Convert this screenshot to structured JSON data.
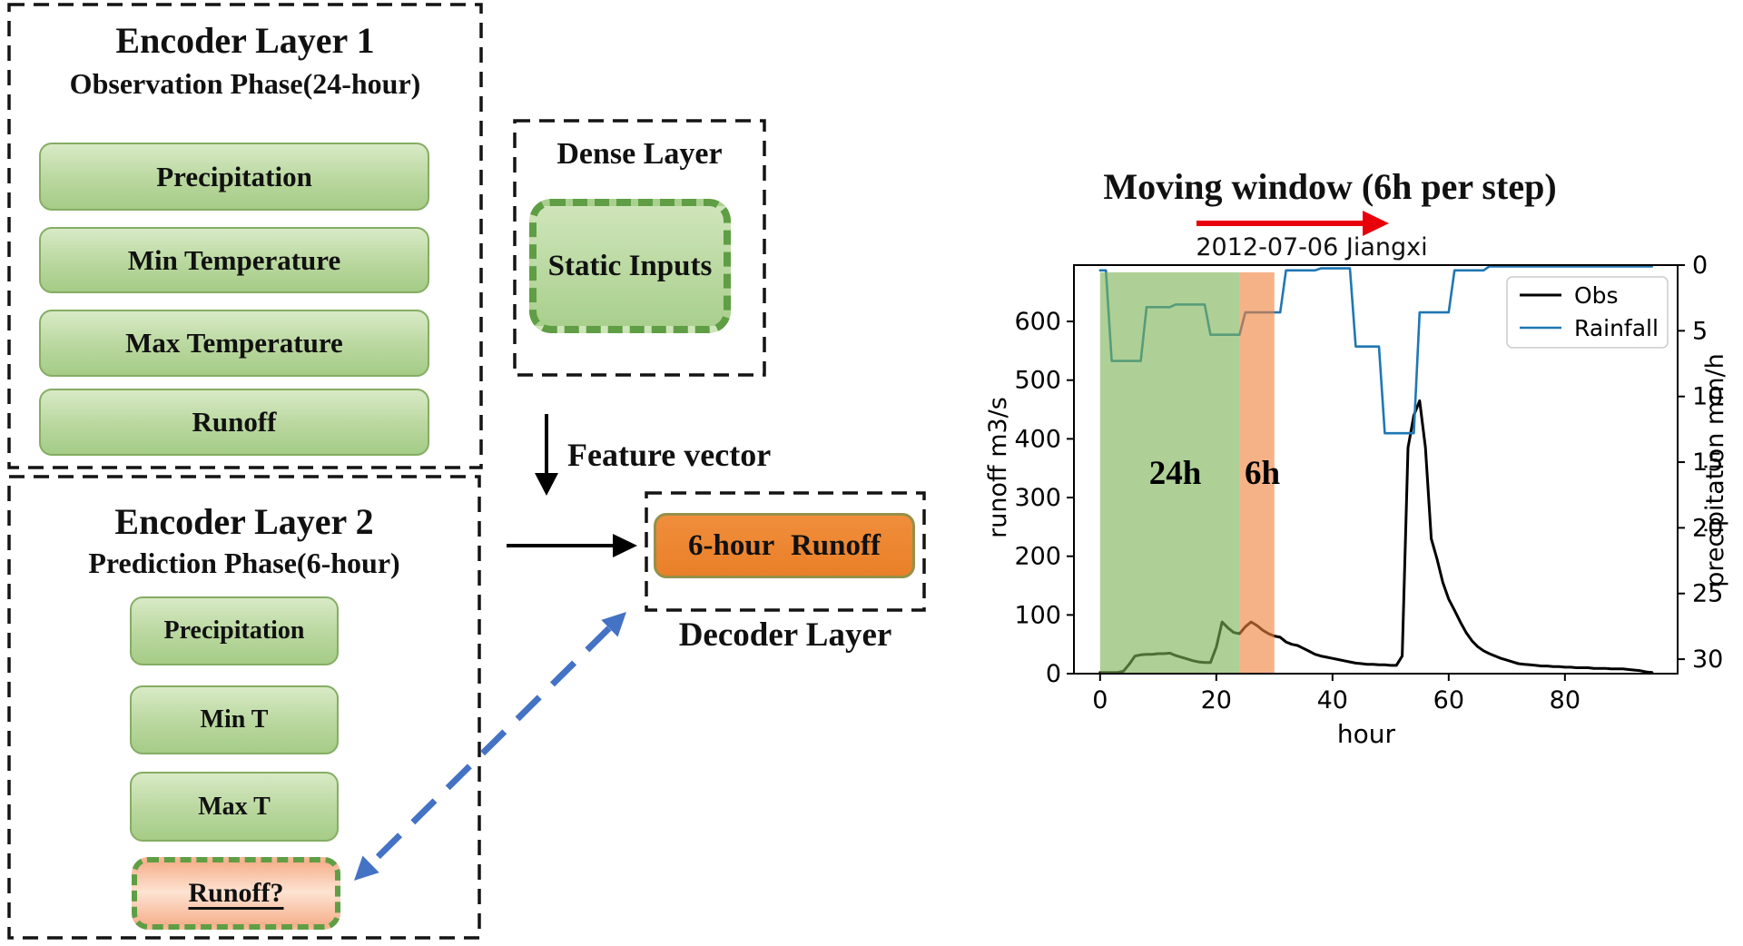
{
  "diagram": {
    "encoder1": {
      "title": "Encoder Layer 1",
      "subtitle": "Observation Phase(24-hour)",
      "inputs": [
        "Precipitation",
        "Min Temperature",
        "Max Temperature",
        "Runoff"
      ]
    },
    "encoder2": {
      "title": "Encoder Layer 2",
      "subtitle": "Prediction Phase(6-hour)",
      "inputs": [
        "Precipitation",
        "Min T",
        "Max T"
      ],
      "feedback_input": "Runoff?"
    },
    "dense": {
      "title": "Dense Layer",
      "box_label": "Static Inputs"
    },
    "feature_vector_label": "Feature vector",
    "decoder": {
      "title": "Decoder Layer",
      "box_label": "6-hour Runoff"
    }
  },
  "colors": {
    "box_green_border": "#85ad63",
    "dashed_green_border": "#5f9e44",
    "orange_box_border": "#95914a",
    "blue_feedback_arrow": "#4472c4",
    "red_window_arrow": "#e8000b",
    "obs_line": "#000000",
    "rainfall_line": "#1f77b4",
    "region_green": "rgba(125,179,86,0.62)",
    "region_orange": "rgba(240,130,62,0.62)"
  },
  "chart_data": {
    "type": "line",
    "banner": {
      "text": "Moving window (6h per step)",
      "arrow_color": "#e8000b"
    },
    "title": "2012-07-06 Jiangxi",
    "xlabel": "hour",
    "ylabel_left": "runoff m3/s",
    "ylabel_right": "precipitation mm/h",
    "x_ticks": [
      0,
      20,
      40,
      60,
      80
    ],
    "y_left_ticks": [
      0,
      100,
      200,
      300,
      400,
      500,
      600
    ],
    "y_right_ticks": [
      0,
      5,
      10,
      15,
      20,
      25,
      30
    ],
    "x_range": [
      -4.5,
      99.4
    ],
    "y_left_range": [
      0,
      696
    ],
    "y_right_range": [
      0,
      31.1
    ],
    "y_right_inverted": true,
    "grid": false,
    "legend_position": "upper right",
    "regions": [
      {
        "label": "24h",
        "from_hour": 0,
        "to_hour": 24,
        "color": "rgba(125,179,86,0.62)"
      },
      {
        "label": "6h",
        "from_hour": 24,
        "to_hour": 30,
        "color": "rgba(240,130,62,0.62)"
      }
    ],
    "hours_start": 0,
    "hours_step": 1,
    "series": [
      {
        "name": "Obs",
        "axis": "left",
        "color": "#000000",
        "values": [
          2,
          2,
          2,
          2,
          4,
          16,
          30,
          32,
          33,
          33,
          34,
          34,
          35,
          31,
          28,
          25,
          22,
          20,
          19,
          19,
          45,
          88,
          78,
          70,
          68,
          80,
          88,
          82,
          74,
          68,
          64,
          62,
          54,
          50,
          48,
          43,
          38,
          33,
          30,
          28,
          26,
          24,
          22,
          20,
          18,
          17,
          16,
          16,
          15,
          15,
          14,
          14,
          30,
          385,
          440,
          465,
          385,
          230,
          195,
          155,
          127,
          108,
          88,
          70,
          56,
          46,
          39,
          34,
          30,
          26,
          23,
          20,
          17,
          16,
          15,
          14,
          13,
          13,
          12,
          12,
          11,
          11,
          10,
          10,
          10,
          9,
          9,
          9,
          8,
          8,
          8,
          7,
          6,
          5,
          3,
          2
        ]
      },
      {
        "name": "Rainfall",
        "axis": "right",
        "color": "#1f77b4",
        "values": [
          0.4,
          0.4,
          7.3,
          7.3,
          7.3,
          7.3,
          7.3,
          7.3,
          3.2,
          3.2,
          3.2,
          3.2,
          3.2,
          3.0,
          3.0,
          3.0,
          3.0,
          3.0,
          3.0,
          5.3,
          5.3,
          5.3,
          5.3,
          5.3,
          5.3,
          3.6,
          3.6,
          3.6,
          3.6,
          3.6,
          3.6,
          3.6,
          0.4,
          0.4,
          0.4,
          0.4,
          0.4,
          0.4,
          0.25,
          0.25,
          0.25,
          0.25,
          0.25,
          0.25,
          6.2,
          6.2,
          6.2,
          6.2,
          6.2,
          12.8,
          12.8,
          12.8,
          12.8,
          12.8,
          12.8,
          3.6,
          3.6,
          3.6,
          3.6,
          3.6,
          3.6,
          0.4,
          0.4,
          0.4,
          0.4,
          0.4,
          0.4,
          0.1,
          0.1,
          0.1,
          0.1,
          0.1,
          0.1,
          0.1,
          0.1,
          0.1,
          0.1,
          0.1,
          0.1,
          0.1,
          0.1,
          0.1,
          0.1,
          0.1,
          0.1,
          0.1,
          0.1,
          0.1,
          0.1,
          0.1,
          0.1,
          0.1,
          0.1,
          0.1,
          0.1,
          0.1
        ]
      }
    ]
  }
}
